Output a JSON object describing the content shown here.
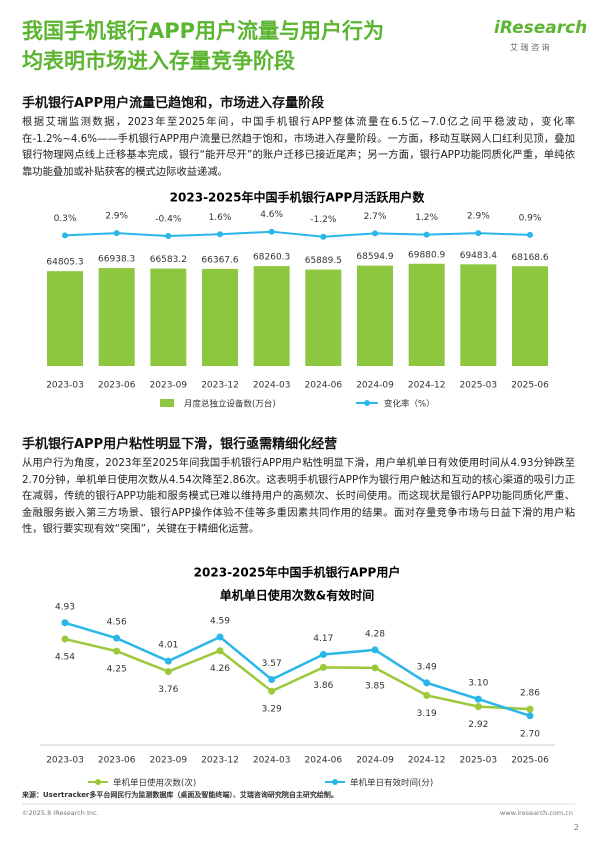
{
  "header": {
    "title_lines": [
      "我国手机银行APP用户流量与用户行为",
      "均表明市场进入存量竞争阶段"
    ],
    "logo": "iResearch",
    "logo_sub": "艾 瑞 咨 询"
  },
  "sections": [
    {
      "heading": "手机银行APP用户流量已趋饱和，市场进入存量阶段",
      "body": "根据艾瑞监测数据，2023年至2025年间，中国手机银行APP整体流量在6.5亿~7.0亿之间平稳波动，变化率在-1.2%~4.6%——手机银行APP用户流量已然趋于饱和，市场进入存量阶段。一方面，移动互联网人口红利见顶，叠加银行物理网点线上迁移基本完成，银行“能开尽开”的账户迁移已接近尾声；另一方面，银行APP功能同质化严重，单纯依靠功能叠加或补贴获客的模式边际收益递减。"
    },
    {
      "heading": "手机银行APP用户粘性明显下滑，银行亟需精细化经营",
      "body": "从用户行为角度，2023年至2025年间我国手机银行APP用户粘性明显下滑，用户单机单日有效使用时间从4.93分钟跌至2.70分钟，单机单日使用次数从4.54次降至2.86次。这表明手机银行APP作为银行用户触达和互动的核心渠道的吸引力正在减弱，传统的银行APP功能和服务模式已难以维持用户的高频次、长时间使用。而这现状是银行APP功能同质化严重、金融服务嵌入第三方场景、银行APP操作体验不佳等多重因素共同作用的结果。面对存量竞争市场与日益下滑的用户粘性，银行要实现有效“突围”，关键在于精细化运营。"
    }
  ],
  "chart_data": [
    {
      "type": "bar",
      "title": "2023-2025年中国手机银行APP月活跃用户数",
      "categories": [
        "2023-03",
        "2023-06",
        "2023-09",
        "2023-12",
        "2024-03",
        "2024-06",
        "2024-09",
        "2024-12",
        "2025-03",
        "2025-06"
      ],
      "series": [
        {
          "name": "月度总独立设备数(万台)",
          "type": "bar",
          "color": "#8dc63f",
          "values": [
            64805.3,
            66938.3,
            66583.2,
            66367.6,
            68260.3,
            65889.5,
            68594.9,
            69880.9,
            69483.4,
            68168.6
          ]
        },
        {
          "name": "变化率（%）",
          "type": "line",
          "axis": "y2",
          "color": "#29b6e8",
          "values": [
            0.3,
            2.9,
            -0.4,
            1.6,
            4.6,
            -1.2,
            2.7,
            1.2,
            2.9,
            0.9
          ],
          "value_labels": [
            "0.3%",
            "2.9%",
            "-0.4%",
            "1.6%",
            "4.6%",
            "-1.2%",
            "2.7%",
            "1.2%",
            "2.9%",
            "0.9%"
          ]
        }
      ],
      "ylim": [
        0,
        95000
      ],
      "y2lim": [
        -150,
        10
      ]
    },
    {
      "type": "line",
      "title": "2023-2025年中国手机银行APP用户",
      "subtitle": "单机单日使用次数&有效时间",
      "categories": [
        "2023-03",
        "2023-06",
        "2023-09",
        "2023-12",
        "2024-03",
        "2024-06",
        "2024-09",
        "2024-12",
        "2025-03",
        "2025-06"
      ],
      "series": [
        {
          "name": "单机单日使用次数(次)",
          "color": "#9cc83a",
          "values": [
            4.54,
            4.25,
            3.76,
            4.26,
            3.29,
            3.86,
            3.85,
            3.19,
            2.92,
            2.86
          ],
          "value_labels": [
            "4.54",
            "4.25",
            "3.76",
            "4.26",
            "3.29",
            "3.86",
            "3.85",
            "3.19",
            "2.92",
            "2.86"
          ]
        },
        {
          "name": "单机单日有效时间(分)",
          "color": "#29b6e8",
          "values": [
            4.93,
            4.56,
            4.01,
            4.59,
            3.57,
            4.17,
            4.28,
            3.49,
            3.1,
            2.7
          ],
          "value_labels": [
            "4.93",
            "4.56",
            "4.01",
            "4.59",
            "3.57",
            "4.17",
            "4.28",
            "3.49",
            "3.10",
            "2.70"
          ]
        }
      ],
      "ylim": [
        2,
        5.5
      ]
    }
  ],
  "footer": {
    "source": "来源：Usertracker多平台网民行为监测数据库（桌面及智能终端）、艾瑞咨询研究院自主研究绘制。",
    "copyright": "©2025.8 iResearch Inc.",
    "url": "www.iresearch.com.cn",
    "page": "2"
  }
}
